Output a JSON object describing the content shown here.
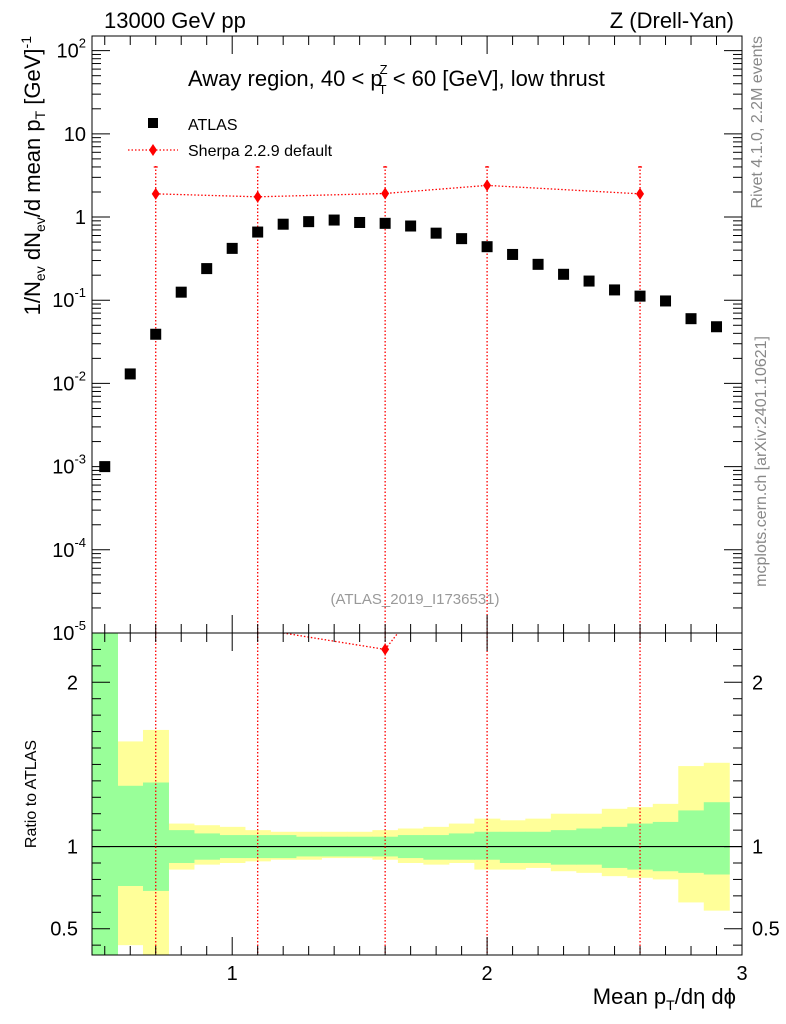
{
  "header": {
    "left": "13000 GeV pp",
    "right": "Z (Drell-Yan)"
  },
  "side_labels": {
    "rivet": "Rivet 4.1.0,  2.2M events",
    "mcplots": "mcplots.cern.ch [arXiv:2401.10621]"
  },
  "chart_data": [
    {
      "type": "scatter",
      "panel": "main",
      "title_parts": {
        "pre": "Away region, 40 < p",
        "sup": "Z",
        "sub": "T",
        "post": " < 60 [GeV], low thrust"
      },
      "ylabel": "1/N_ev dN_ev/d mean p_T [GeV]^-1",
      "ylabel_parts": {
        "a": "1/N",
        "a_sub": "ev",
        "b": " dN",
        "b_sub": "ev",
        "c": "/d mean p",
        "c_sub": "T",
        "d": " [GeV]",
        "d_sup": "-1"
      },
      "yscale": "log",
      "ylim": [
        1e-05,
        150
      ],
      "xlim": [
        0.45,
        3.0
      ],
      "yticks": [
        {
          "base": "10",
          "exp": "-5",
          "value": 1e-05
        },
        {
          "base": "10",
          "exp": "-4",
          "value": 0.0001
        },
        {
          "base": "10",
          "exp": "-3",
          "value": 0.001
        },
        {
          "base": "10",
          "exp": "-2",
          "value": 0.01
        },
        {
          "base": "10",
          "exp": "-1",
          "value": 0.1
        },
        {
          "base": "1",
          "exp": "",
          "value": 1
        },
        {
          "base": "10",
          "exp": "",
          "value": 10
        },
        {
          "base": "10",
          "exp": "2",
          "value": 100
        }
      ],
      "watermark": "(ATLAS_2019_I1736531)",
      "legend": [
        {
          "name": "ATLAS",
          "marker": "square",
          "color": "#000000"
        },
        {
          "name": "Sherpa 2.2.9 default",
          "marker": "diamond",
          "color": "#ff0000"
        }
      ],
      "legend_position": "top-left",
      "series": [
        {
          "name": "ATLAS",
          "x": [
            0.5,
            0.6,
            0.7,
            0.8,
            0.9,
            1.0,
            1.1,
            1.2,
            1.3,
            1.4,
            1.5,
            1.6,
            1.7,
            1.8,
            1.9,
            2.0,
            2.1,
            2.2,
            2.3,
            2.4,
            2.5,
            2.6,
            2.7,
            2.8,
            2.9
          ],
          "y": [
            0.001,
            0.013,
            0.039,
            0.125,
            0.24,
            0.42,
            0.66,
            0.82,
            0.88,
            0.92,
            0.86,
            0.84,
            0.78,
            0.64,
            0.55,
            0.44,
            0.355,
            0.27,
            0.205,
            0.17,
            0.133,
            0.112,
            0.098,
            0.06,
            0.048
          ]
        },
        {
          "name": "Sherpa 2.2.9 default",
          "x": [
            0.7,
            1.1,
            1.6,
            2.0,
            2.6
          ],
          "y": [
            1.9,
            1.75,
            1.92,
            2.4,
            1.9
          ]
        }
      ]
    },
    {
      "type": "area",
      "panel": "ratio",
      "ylabel": "Ratio to ATLAS",
      "ylim": [
        0.34,
        2.3
      ],
      "xlim": [
        0.45,
        3.0
      ],
      "xlabel_parts": {
        "pre": "Mean p",
        "sub": "T",
        "post": "/dη dϕ"
      },
      "xticks": [
        1,
        2,
        3
      ],
      "ytick_labels": [
        {
          "label": "0.5",
          "value": 0.5
        },
        {
          "label": "1",
          "value": 1
        },
        {
          "label": "2",
          "value": 2
        }
      ],
      "bin_edges": [
        0.45,
        0.55,
        0.65,
        0.75,
        0.85,
        0.95,
        1.05,
        1.15,
        1.25,
        1.35,
        1.45,
        1.55,
        1.65,
        1.75,
        1.85,
        1.95,
        2.05,
        2.15,
        2.25,
        2.35,
        2.45,
        2.55,
        2.65,
        2.75,
        2.85,
        2.95
      ],
      "bands": [
        {
          "name": "stat",
          "color": "#99ff99",
          "low": [
            0.34,
            0.76,
            0.73,
            0.9,
            0.92,
            0.93,
            0.93,
            0.93,
            0.94,
            0.94,
            0.94,
            0.94,
            0.93,
            0.92,
            0.92,
            0.92,
            0.9,
            0.9,
            0.89,
            0.89,
            0.87,
            0.86,
            0.85,
            0.84,
            0.83
          ],
          "high": [
            2.3,
            1.37,
            1.39,
            1.1,
            1.08,
            1.07,
            1.07,
            1.07,
            1.06,
            1.06,
            1.06,
            1.06,
            1.07,
            1.07,
            1.08,
            1.09,
            1.09,
            1.09,
            1.1,
            1.11,
            1.12,
            1.14,
            1.15,
            1.22,
            1.27
          ]
        },
        {
          "name": "total",
          "color": "#ffff99",
          "low": [
            0.34,
            0.4,
            0.34,
            0.86,
            0.89,
            0.9,
            0.91,
            0.92,
            0.92,
            0.93,
            0.93,
            0.92,
            0.9,
            0.89,
            0.9,
            0.86,
            0.86,
            0.87,
            0.85,
            0.84,
            0.82,
            0.81,
            0.8,
            0.66,
            0.61
          ],
          "high": [
            2.3,
            1.64,
            1.71,
            1.14,
            1.13,
            1.12,
            1.1,
            1.09,
            1.09,
            1.09,
            1.09,
            1.1,
            1.11,
            1.12,
            1.14,
            1.17,
            1.16,
            1.17,
            1.2,
            1.2,
            1.23,
            1.24,
            1.26,
            1.49,
            1.51
          ]
        }
      ],
      "series": [
        {
          "name": "Sherpa 2.2.9 default",
          "x": [
            1.6
          ],
          "y": [
            2.2
          ]
        }
      ]
    }
  ]
}
